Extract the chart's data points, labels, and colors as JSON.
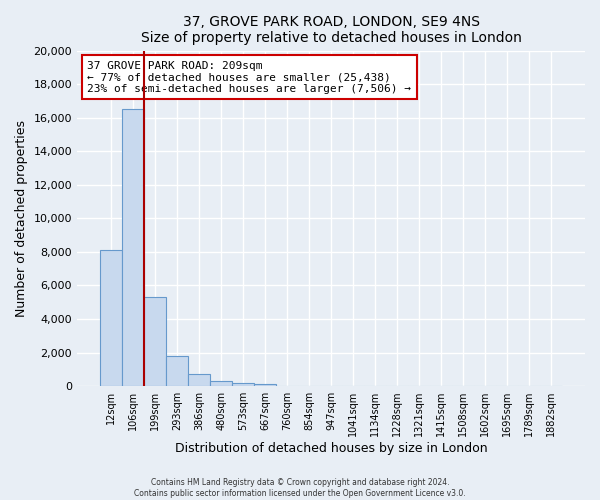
{
  "title": "37, GROVE PARK ROAD, LONDON, SE9 4NS",
  "subtitle": "Size of property relative to detached houses in London",
  "xlabel": "Distribution of detached houses by size in London",
  "ylabel": "Number of detached properties",
  "bar_labels": [
    "12sqm",
    "106sqm",
    "199sqm",
    "293sqm",
    "386sqm",
    "480sqm",
    "573sqm",
    "667sqm",
    "760sqm",
    "854sqm",
    "947sqm",
    "1041sqm",
    "1134sqm",
    "1228sqm",
    "1321sqm",
    "1415sqm",
    "1508sqm",
    "1602sqm",
    "1695sqm",
    "1789sqm",
    "1882sqm"
  ],
  "bar_values": [
    8100,
    16500,
    5300,
    1800,
    750,
    300,
    200,
    150,
    0,
    0,
    0,
    0,
    0,
    0,
    0,
    0,
    0,
    0,
    0,
    0,
    0
  ],
  "bar_color": "#c8d9ee",
  "bar_edge_color": "#6699cc",
  "property_line_color": "#aa0000",
  "annotation_title": "37 GROVE PARK ROAD: 209sqm",
  "annotation_line1": "← 77% of detached houses are smaller (25,438)",
  "annotation_line2": "23% of semi-detached houses are larger (7,506) →",
  "annotation_box_color": "#ffffff",
  "annotation_box_edge_color": "#cc0000",
  "ylim": [
    0,
    20000
  ],
  "yticks": [
    0,
    2000,
    4000,
    6000,
    8000,
    10000,
    12000,
    14000,
    16000,
    18000,
    20000
  ],
  "footer1": "Contains HM Land Registry data © Crown copyright and database right 2024.",
  "footer2": "Contains public sector information licensed under the Open Government Licence v3.0.",
  "bg_color": "#e8eef5",
  "plot_bg_color": "#e8eef5",
  "grid_color": "#ffffff"
}
